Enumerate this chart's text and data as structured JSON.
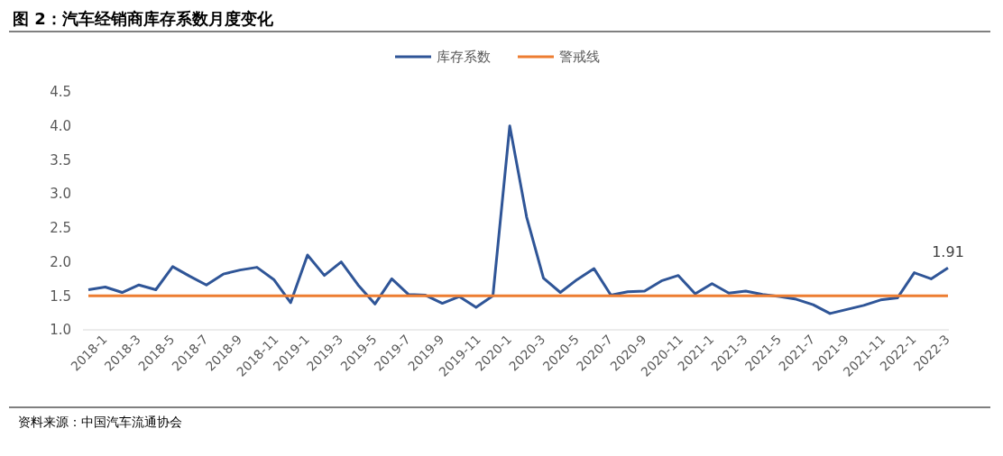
{
  "chart_data": {
    "type": "line",
    "title": "图 2：汽车经销商库存系数月度变化",
    "categories": [
      "2018-1",
      null,
      "2018-3",
      null,
      "2018-5",
      null,
      "2018-7",
      null,
      "2018-9",
      null,
      "2018-11",
      null,
      "2019-1",
      null,
      "2019-3",
      null,
      "2019-5",
      null,
      "2019-7",
      null,
      "2019-9",
      null,
      "2019-11",
      null,
      "2020-1",
      null,
      "2020-3",
      null,
      "2020-5",
      null,
      "2020-7",
      null,
      "2020-9",
      null,
      "2020-11",
      null,
      "2021-1",
      null,
      "2021-3",
      null,
      "2021-5",
      null,
      "2021-7",
      null,
      "2021-9",
      null,
      "2021-11",
      null,
      "2022-1",
      null,
      "2022-3",
      null
    ],
    "series": [
      {
        "name": "库存系数",
        "color": "#2f5597",
        "values": [
          1.59,
          1.63,
          1.55,
          1.66,
          1.59,
          1.93,
          1.79,
          1.66,
          1.82,
          1.88,
          1.92,
          1.74,
          1.4,
          2.1,
          1.8,
          2.0,
          1.66,
          1.38,
          1.75,
          1.52,
          1.51,
          1.39,
          1.49,
          1.33,
          1.5,
          4.0,
          2.66,
          1.76,
          1.55,
          1.74,
          1.9,
          1.51,
          1.56,
          1.57,
          1.72,
          1.8,
          1.53,
          1.68,
          1.54,
          1.57,
          1.52,
          1.49,
          1.45,
          1.37,
          1.24,
          1.3,
          1.36,
          1.44,
          1.47,
          1.84,
          1.75,
          1.91
        ],
        "value_labels": [
          null,
          null,
          null,
          null,
          null,
          null,
          null,
          null,
          null,
          null,
          null,
          null,
          null,
          null,
          null,
          null,
          null,
          null,
          null,
          null,
          null,
          null,
          null,
          null,
          null,
          null,
          null,
          null,
          null,
          null,
          null,
          null,
          null,
          null,
          null,
          null,
          null,
          null,
          null,
          null,
          null,
          null,
          null,
          null,
          null,
          null,
          null,
          null,
          null,
          null,
          null,
          "1.91"
        ]
      },
      {
        "name": "警戒线",
        "color": "#ed7d31",
        "values": [
          1.5,
          1.5,
          1.5,
          1.5,
          1.5,
          1.5,
          1.5,
          1.5,
          1.5,
          1.5,
          1.5,
          1.5,
          1.5,
          1.5,
          1.5,
          1.5,
          1.5,
          1.5,
          1.5,
          1.5,
          1.5,
          1.5,
          1.5,
          1.5,
          1.5,
          1.5,
          1.5,
          1.5,
          1.5,
          1.5,
          1.5,
          1.5,
          1.5,
          1.5,
          1.5,
          1.5,
          1.5,
          1.5,
          1.5,
          1.5,
          1.5,
          1.5,
          1.5,
          1.5,
          1.5,
          1.5,
          1.5,
          1.5,
          1.5,
          1.5,
          1.5,
          1.5
        ]
      }
    ],
    "ylim": [
      1,
      4.5
    ],
    "yticks": [
      {
        "value": 1,
        "label": "1.0"
      },
      {
        "value": 1.5,
        "label": "1.5"
      },
      {
        "value": 2,
        "label": "2.0"
      },
      {
        "value": 2.5,
        "label": "2.5"
      },
      {
        "value": 3,
        "label": "3.0"
      },
      {
        "value": 3.5,
        "label": "3.5"
      },
      {
        "value": 4,
        "label": "4.0"
      },
      {
        "value": 4.5,
        "label": "4.5"
      }
    ],
    "legend": "top",
    "grid": false,
    "marker": "none",
    "line_style": "solid",
    "annotations": [
      "资料来源：中国汽车流通协会"
    ]
  }
}
